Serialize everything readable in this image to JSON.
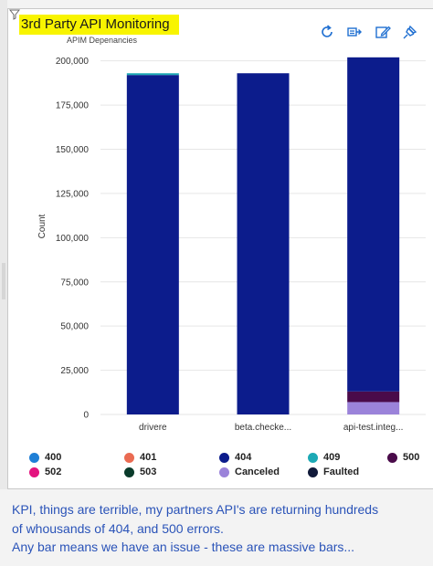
{
  "title": "3rd Party API Monitoring",
  "subtitle": "APIM Depenancies",
  "toolbar": {
    "icons": [
      "refresh-icon",
      "export-icon",
      "edit-icon",
      "pin-icon"
    ]
  },
  "colors": {
    "title_highlight": "#f8f400",
    "caption_text": "#2a53b8"
  },
  "chart_data": {
    "type": "bar",
    "stacked": true,
    "ylabel": "Count",
    "xlabel": "",
    "ylim": [
      0,
      205000
    ],
    "yticks": [
      0,
      25000,
      50000,
      75000,
      100000,
      125000,
      150000,
      175000,
      200000
    ],
    "ytick_labels": [
      "0",
      "25,000",
      "50,000",
      "75,000",
      "100,000",
      "125,000",
      "150,000",
      "175,000",
      "200,000"
    ],
    "categories": [
      "drivere",
      "beta.checke...",
      "api-test.integ..."
    ],
    "series": [
      {
        "name": "400",
        "color": "#1f7fd6",
        "values": [
          0,
          0,
          0
        ]
      },
      {
        "name": "401",
        "color": "#ea6b52",
        "values": [
          0,
          0,
          0
        ]
      },
      {
        "name": "404",
        "color": "#0c1c8c",
        "values": [
          192000,
          193000,
          189000
        ]
      },
      {
        "name": "409",
        "color": "#1ca9b5",
        "values": [
          1000,
          0,
          0
        ]
      },
      {
        "name": "500",
        "color": "#4a0b4a",
        "values": [
          0,
          0,
          6000
        ]
      },
      {
        "name": "502",
        "color": "#e3137f",
        "values": [
          0,
          0,
          0
        ]
      },
      {
        "name": "503",
        "color": "#0a3b2b",
        "values": [
          0,
          0,
          0
        ]
      },
      {
        "name": "Canceled",
        "color": "#9b83da",
        "values": [
          0,
          0,
          7000
        ]
      },
      {
        "name": "Faulted",
        "color": "#111a3a",
        "values": [
          0,
          0,
          0
        ]
      }
    ],
    "stack_order": [
      "Canceled",
      "500",
      "404",
      "409"
    ],
    "grid": true,
    "legend_position": "bottom"
  },
  "caption": {
    "line1": "KPI, things are terrible, my partners API's are returning hundreds",
    "line2": "of whousands of 404, and 500 errors.",
    "line3": "Any bar means we have an issue - these are massive bars..."
  }
}
